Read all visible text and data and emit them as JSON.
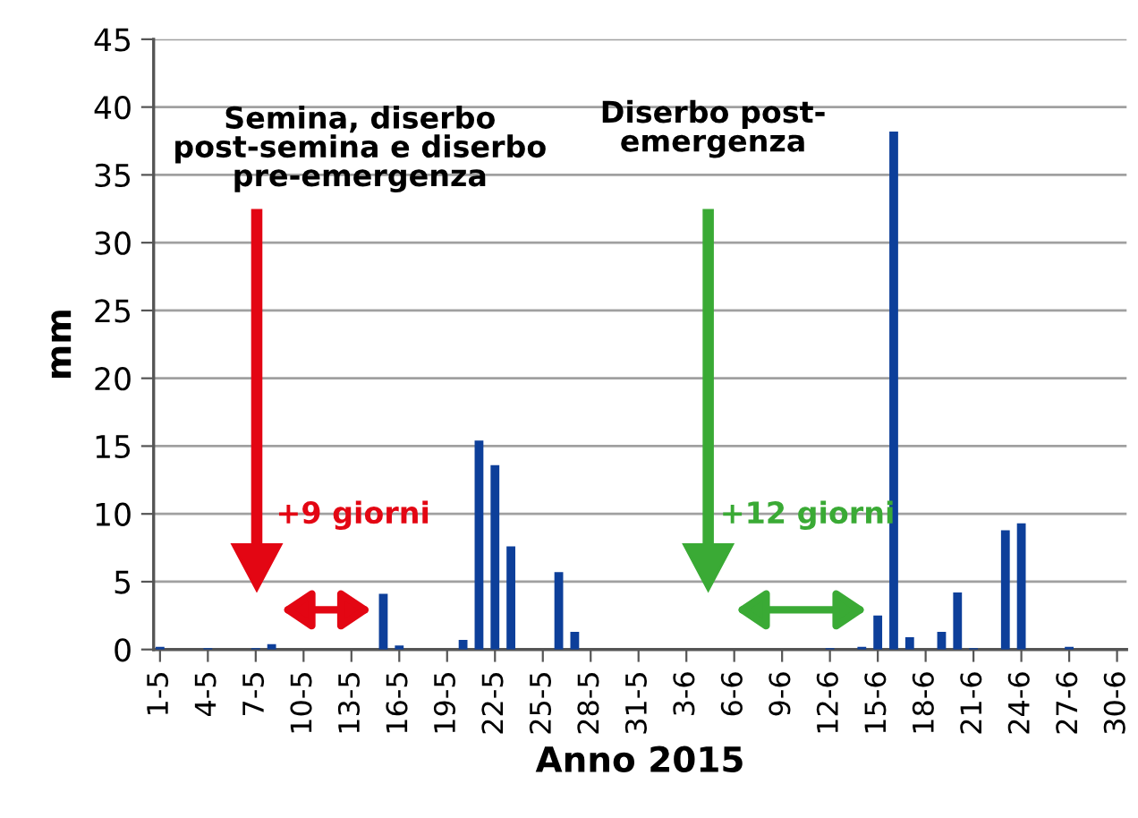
{
  "chart_data": {
    "type": "bar",
    "xlabel": "Anno 2015",
    "ylabel": "mm",
    "categories": [
      "1-5",
      null,
      null,
      "4-5",
      null,
      null,
      "7-5",
      null,
      null,
      "10-5",
      null,
      null,
      "13-5",
      null,
      null,
      "16-5",
      null,
      null,
      "19-5",
      null,
      null,
      "22-5",
      null,
      null,
      "25-5",
      null,
      null,
      "28-5",
      null,
      null,
      "31-5",
      null,
      null,
      "3-6",
      null,
      null,
      "6-6",
      null,
      null,
      "9-6",
      null,
      null,
      "12-6",
      null,
      null,
      "15-6",
      null,
      null,
      "18-6",
      null,
      null,
      "21-6",
      null,
      null,
      "24-6",
      null,
      null,
      "27-6",
      null,
      null,
      "30-6"
    ],
    "values": [
      0.2,
      0,
      0,
      0.1,
      0,
      0,
      0.1,
      0.4,
      0,
      0,
      0,
      0,
      0,
      0,
      4.1,
      0.3,
      0,
      0,
      0,
      0.7,
      15.4,
      13.6,
      7.6,
      0,
      0,
      5.7,
      1.3,
      0,
      0,
      0,
      0,
      0,
      0,
      0,
      0,
      0,
      0,
      0,
      0,
      0,
      0,
      0,
      0.1,
      0,
      0.2,
      2.5,
      38.2,
      0.9,
      0,
      1.3,
      4.2,
      0.1,
      0,
      8.8,
      9.3,
      0,
      0,
      0.2,
      0,
      0,
      0
    ],
    "color": "#0d3f9a",
    "ylim": [
      0,
      45
    ],
    "yticks": [
      0,
      5,
      10,
      15,
      20,
      25,
      30,
      35,
      40,
      45
    ],
    "grid": "y",
    "annotations": [
      "Semina, diserbo\npost-semina e diserbo\npre-emergenza",
      "+9 giorni",
      "Diserbo post-\nemergenza",
      "+12 giorni"
    ]
  }
}
